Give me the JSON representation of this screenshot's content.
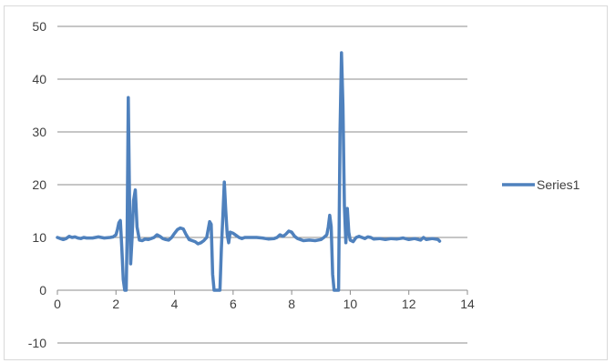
{
  "chart_data": {
    "type": "line",
    "title": "",
    "xlabel": "",
    "ylabel": "",
    "xlim": [
      0,
      14
    ],
    "ylim": [
      -10,
      50
    ],
    "x_ticks": [
      0,
      2,
      4,
      6,
      8,
      10,
      12,
      14
    ],
    "y_ticks": [
      -10,
      0,
      10,
      20,
      30,
      40,
      50
    ],
    "x_tick_labels": [
      "0",
      "2",
      "4",
      "6",
      "8",
      "10",
      "12",
      "14"
    ],
    "y_tick_labels": [
      "-10",
      "0",
      "10",
      "20",
      "30",
      "40",
      "50"
    ],
    "grid": "horizontal",
    "legend_position": "right",
    "colors": {
      "series": "#4f81bd",
      "gridline": "#8c8c8c",
      "axis": "#8c8c8c",
      "text": "#404040"
    },
    "series": [
      {
        "name": "Series1",
        "points": [
          [
            0.0,
            10.0
          ],
          [
            0.1,
            9.8
          ],
          [
            0.2,
            9.6
          ],
          [
            0.3,
            9.8
          ],
          [
            0.4,
            10.2
          ],
          [
            0.5,
            10.0
          ],
          [
            0.6,
            10.1
          ],
          [
            0.7,
            9.9
          ],
          [
            0.8,
            9.8
          ],
          [
            0.9,
            10.0
          ],
          [
            1.0,
            9.9
          ],
          [
            1.2,
            9.9
          ],
          [
            1.4,
            10.1
          ],
          [
            1.6,
            9.9
          ],
          [
            1.8,
            10.0
          ],
          [
            1.9,
            10.1
          ],
          [
            2.0,
            10.5
          ],
          [
            2.05,
            11.5
          ],
          [
            2.1,
            12.8
          ],
          [
            2.15,
            13.2
          ],
          [
            2.2,
            8.0
          ],
          [
            2.25,
            2.0
          ],
          [
            2.3,
            0.0
          ],
          [
            2.35,
            0.0
          ],
          [
            2.38,
            10.0
          ],
          [
            2.42,
            36.5
          ],
          [
            2.46,
            18.0
          ],
          [
            2.5,
            5.0
          ],
          [
            2.55,
            10.0
          ],
          [
            2.6,
            17.0
          ],
          [
            2.66,
            19.0
          ],
          [
            2.72,
            12.0
          ],
          [
            2.8,
            9.5
          ],
          [
            2.9,
            9.4
          ],
          [
            3.0,
            9.7
          ],
          [
            3.1,
            9.6
          ],
          [
            3.2,
            9.8
          ],
          [
            3.3,
            10.0
          ],
          [
            3.4,
            10.5
          ],
          [
            3.5,
            10.2
          ],
          [
            3.6,
            9.8
          ],
          [
            3.7,
            9.6
          ],
          [
            3.8,
            9.5
          ],
          [
            3.9,
            10.0
          ],
          [
            4.0,
            10.8
          ],
          [
            4.1,
            11.5
          ],
          [
            4.2,
            11.8
          ],
          [
            4.3,
            11.6
          ],
          [
            4.4,
            10.5
          ],
          [
            4.5,
            9.6
          ],
          [
            4.6,
            9.4
          ],
          [
            4.7,
            9.2
          ],
          [
            4.8,
            8.8
          ],
          [
            4.9,
            9.0
          ],
          [
            5.0,
            9.4
          ],
          [
            5.1,
            10.0
          ],
          [
            5.15,
            11.5
          ],
          [
            5.2,
            13.0
          ],
          [
            5.25,
            12.5
          ],
          [
            5.3,
            3.0
          ],
          [
            5.35,
            0.0
          ],
          [
            5.45,
            0.0
          ],
          [
            5.55,
            0.0
          ],
          [
            5.6,
            8.0
          ],
          [
            5.65,
            14.0
          ],
          [
            5.7,
            20.5
          ],
          [
            5.75,
            15.0
          ],
          [
            5.8,
            10.5
          ],
          [
            5.85,
            9.0
          ],
          [
            5.9,
            11.0
          ],
          [
            6.0,
            10.8
          ],
          [
            6.1,
            10.4
          ],
          [
            6.2,
            10.0
          ],
          [
            6.3,
            9.8
          ],
          [
            6.4,
            10.0
          ],
          [
            6.6,
            10.0
          ],
          [
            6.8,
            10.0
          ],
          [
            7.0,
            9.9
          ],
          [
            7.2,
            9.7
          ],
          [
            7.4,
            9.8
          ],
          [
            7.5,
            10.0
          ],
          [
            7.6,
            10.5
          ],
          [
            7.7,
            10.2
          ],
          [
            7.8,
            10.6
          ],
          [
            7.9,
            11.2
          ],
          [
            8.0,
            11.0
          ],
          [
            8.1,
            10.2
          ],
          [
            8.2,
            9.8
          ],
          [
            8.3,
            9.6
          ],
          [
            8.4,
            9.4
          ],
          [
            8.6,
            9.5
          ],
          [
            8.8,
            9.4
          ],
          [
            9.0,
            9.6
          ],
          [
            9.1,
            10.0
          ],
          [
            9.2,
            10.5
          ],
          [
            9.25,
            12.0
          ],
          [
            9.3,
            14.2
          ],
          [
            9.35,
            12.0
          ],
          [
            9.4,
            3.0
          ],
          [
            9.45,
            0.0
          ],
          [
            9.5,
            0.0
          ],
          [
            9.6,
            0.0
          ],
          [
            9.65,
            30.0
          ],
          [
            9.7,
            45.0
          ],
          [
            9.75,
            35.0
          ],
          [
            9.8,
            16.0
          ],
          [
            9.85,
            9.0
          ],
          [
            9.9,
            15.5
          ],
          [
            9.95,
            11.0
          ],
          [
            10.0,
            9.5
          ],
          [
            10.1,
            9.2
          ],
          [
            10.2,
            10.0
          ],
          [
            10.3,
            10.2
          ],
          [
            10.4,
            10.0
          ],
          [
            10.5,
            9.8
          ],
          [
            10.6,
            10.1
          ],
          [
            10.7,
            10.0
          ],
          [
            10.8,
            9.7
          ],
          [
            11.0,
            9.8
          ],
          [
            11.2,
            9.6
          ],
          [
            11.4,
            9.8
          ],
          [
            11.6,
            9.7
          ],
          [
            11.8,
            9.9
          ],
          [
            12.0,
            9.6
          ],
          [
            12.2,
            9.8
          ],
          [
            12.4,
            9.5
          ],
          [
            12.5,
            10.0
          ],
          [
            12.6,
            9.6
          ],
          [
            12.8,
            9.8
          ],
          [
            13.0,
            9.6
          ],
          [
            13.05,
            9.3
          ]
        ]
      }
    ]
  }
}
